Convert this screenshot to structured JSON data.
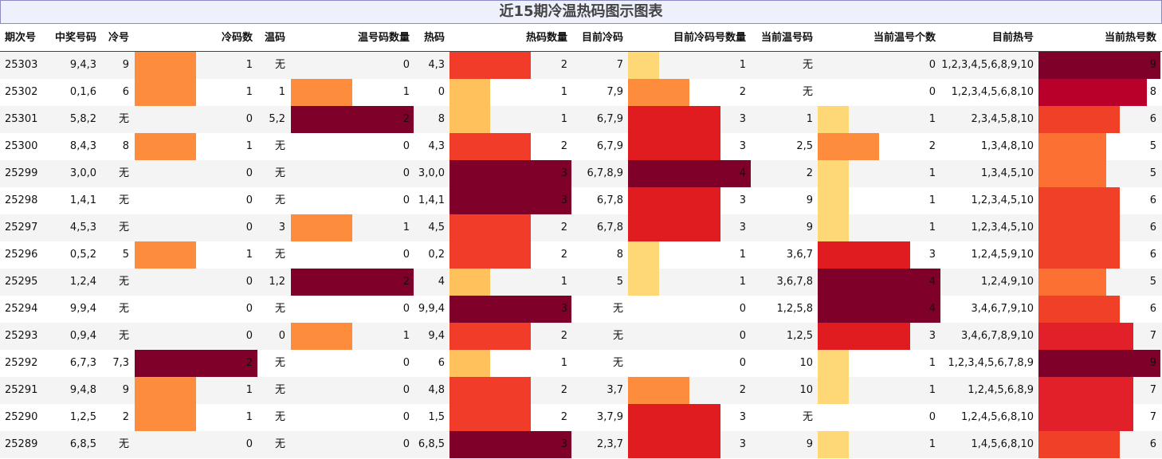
{
  "title": "近15期冷温热码图示图表",
  "chart_data": {
    "type": "table",
    "title": "近15期冷温热码图示图表",
    "columns": [
      {
        "key": "period",
        "label": "期次号"
      },
      {
        "key": "winning",
        "label": "中奖号码"
      },
      {
        "key": "cold",
        "label": "冷号"
      },
      {
        "key": "cold_count",
        "label": "冷码数"
      },
      {
        "key": "warm",
        "label": "温码"
      },
      {
        "key": "warm_count",
        "label": "温号码数量"
      },
      {
        "key": "hot",
        "label": "热码"
      },
      {
        "key": "hot_count",
        "label": "热码数量"
      },
      {
        "key": "cur_cold",
        "label": "目前冷码"
      },
      {
        "key": "cur_cold_count",
        "label": "目前冷码号数量"
      },
      {
        "key": "cur_warm",
        "label": "当前温号码"
      },
      {
        "key": "cur_warm_count",
        "label": "当前温号个数"
      },
      {
        "key": "cur_hot",
        "label": "目前热号"
      },
      {
        "key": "cur_hot_count",
        "label": "当前热号数"
      }
    ],
    "rows": [
      {
        "period": "25303",
        "winning": "9,4,3",
        "cold": "9",
        "cold_count": 1,
        "warm": "无",
        "warm_count": 0,
        "hot": "4,3",
        "hot_count": 2,
        "cur_cold": "7",
        "cur_cold_count": 1,
        "cur_warm": "无",
        "cur_warm_count": 0,
        "cur_hot": "1,2,3,4,5,6,8,9,10",
        "cur_hot_count": 9
      },
      {
        "period": "25302",
        "winning": "0,1,6",
        "cold": "6",
        "cold_count": 1,
        "warm": "1",
        "warm_count": 1,
        "hot": "0",
        "hot_count": 1,
        "cur_cold": "7,9",
        "cur_cold_count": 2,
        "cur_warm": "无",
        "cur_warm_count": 0,
        "cur_hot": "1,2,3,4,5,6,8,10",
        "cur_hot_count": 8
      },
      {
        "period": "25301",
        "winning": "5,8,2",
        "cold": "无",
        "cold_count": 0,
        "warm": "5,2",
        "warm_count": 2,
        "hot": "8",
        "hot_count": 1,
        "cur_cold": "6,7,9",
        "cur_cold_count": 3,
        "cur_warm": "1",
        "cur_warm_count": 1,
        "cur_hot": "2,3,4,5,8,10",
        "cur_hot_count": 6
      },
      {
        "period": "25300",
        "winning": "8,4,3",
        "cold": "8",
        "cold_count": 1,
        "warm": "无",
        "warm_count": 0,
        "hot": "4,3",
        "hot_count": 2,
        "cur_cold": "6,7,9",
        "cur_cold_count": 3,
        "cur_warm": "2,5",
        "cur_warm_count": 2,
        "cur_hot": "1,3,4,8,10",
        "cur_hot_count": 5
      },
      {
        "period": "25299",
        "winning": "3,0,0",
        "cold": "无",
        "cold_count": 0,
        "warm": "无",
        "warm_count": 0,
        "hot": "3,0,0",
        "hot_count": 3,
        "cur_cold": "6,7,8,9",
        "cur_cold_count": 4,
        "cur_warm": "2",
        "cur_warm_count": 1,
        "cur_hot": "1,3,4,5,10",
        "cur_hot_count": 5
      },
      {
        "period": "25298",
        "winning": "1,4,1",
        "cold": "无",
        "cold_count": 0,
        "warm": "无",
        "warm_count": 0,
        "hot": "1,4,1",
        "hot_count": 3,
        "cur_cold": "6,7,8",
        "cur_cold_count": 3,
        "cur_warm": "9",
        "cur_warm_count": 1,
        "cur_hot": "1,2,3,4,5,10",
        "cur_hot_count": 6
      },
      {
        "period": "25297",
        "winning": "4,5,3",
        "cold": "无",
        "cold_count": 0,
        "warm": "3",
        "warm_count": 1,
        "hot": "4,5",
        "hot_count": 2,
        "cur_cold": "6,7,8",
        "cur_cold_count": 3,
        "cur_warm": "9",
        "cur_warm_count": 1,
        "cur_hot": "1,2,3,4,5,10",
        "cur_hot_count": 6
      },
      {
        "period": "25296",
        "winning": "0,5,2",
        "cold": "5",
        "cold_count": 1,
        "warm": "无",
        "warm_count": 0,
        "hot": "0,2",
        "hot_count": 2,
        "cur_cold": "8",
        "cur_cold_count": 1,
        "cur_warm": "3,6,7",
        "cur_warm_count": 3,
        "cur_hot": "1,2,4,5,9,10",
        "cur_hot_count": 6
      },
      {
        "period": "25295",
        "winning": "1,2,4",
        "cold": "无",
        "cold_count": 0,
        "warm": "1,2",
        "warm_count": 2,
        "hot": "4",
        "hot_count": 1,
        "cur_cold": "5",
        "cur_cold_count": 1,
        "cur_warm": "3,6,7,8",
        "cur_warm_count": 4,
        "cur_hot": "1,2,4,9,10",
        "cur_hot_count": 5
      },
      {
        "period": "25294",
        "winning": "9,9,4",
        "cold": "无",
        "cold_count": 0,
        "warm": "无",
        "warm_count": 0,
        "hot": "9,9,4",
        "hot_count": 3,
        "cur_cold": "无",
        "cur_cold_count": 0,
        "cur_warm": "1,2,5,8",
        "cur_warm_count": 4,
        "cur_hot": "3,4,6,7,9,10",
        "cur_hot_count": 6
      },
      {
        "period": "25293",
        "winning": "0,9,4",
        "cold": "无",
        "cold_count": 0,
        "warm": "0",
        "warm_count": 1,
        "hot": "9,4",
        "hot_count": 2,
        "cur_cold": "无",
        "cur_cold_count": 0,
        "cur_warm": "1,2,5",
        "cur_warm_count": 3,
        "cur_hot": "3,4,6,7,8,9,10",
        "cur_hot_count": 7
      },
      {
        "period": "25292",
        "winning": "6,7,3",
        "cold": "7,3",
        "cold_count": 2,
        "warm": "无",
        "warm_count": 0,
        "hot": "6",
        "hot_count": 1,
        "cur_cold": "无",
        "cur_cold_count": 0,
        "cur_warm": "10",
        "cur_warm_count": 1,
        "cur_hot": "1,2,3,4,5,6,7,8,9",
        "cur_hot_count": 9
      },
      {
        "period": "25291",
        "winning": "9,4,8",
        "cold": "9",
        "cold_count": 1,
        "warm": "无",
        "warm_count": 0,
        "hot": "4,8",
        "hot_count": 2,
        "cur_cold": "3,7",
        "cur_cold_count": 2,
        "cur_warm": "10",
        "cur_warm_count": 1,
        "cur_hot": "1,2,4,5,6,8,9",
        "cur_hot_count": 7
      },
      {
        "period": "25290",
        "winning": "1,2,5",
        "cold": "2",
        "cold_count": 1,
        "warm": "无",
        "warm_count": 0,
        "hot": "1,5",
        "hot_count": 2,
        "cur_cold": "3,7,9",
        "cur_cold_count": 3,
        "cur_warm": "无",
        "cur_warm_count": 0,
        "cur_hot": "1,2,4,5,6,8,10",
        "cur_hot_count": 7
      },
      {
        "period": "25289",
        "winning": "6,8,5",
        "cold": "无",
        "cold_count": 0,
        "warm": "无",
        "warm_count": 0,
        "hot": "6,8,5",
        "hot_count": 3,
        "cur_cold": "2,3,7",
        "cur_cold_count": 3,
        "cur_warm": "9",
        "cur_warm_count": 1,
        "cur_hot": "1,4,5,6,8,10",
        "cur_hot_count": 6
      }
    ]
  }
}
